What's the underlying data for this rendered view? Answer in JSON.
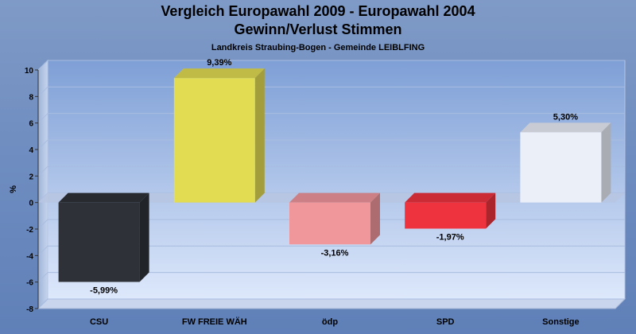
{
  "chart_data": {
    "type": "bar",
    "title": "Vergleich Europawahl 2009 - Europawahl 2004",
    "subtitle": "Gewinn/Verlust Stimmen",
    "subtitle2": "Landkreis Straubing-Bogen - Gemeinde LEIBLFING",
    "ylabel": "%",
    "ylim": [
      -8,
      10
    ],
    "yticks": [
      -8,
      -6,
      -4,
      -2,
      0,
      2,
      4,
      6,
      8,
      10
    ],
    "categories": [
      "CSU",
      "FW FREIE WÄH",
      "ödp",
      "SPD",
      "Sonstige"
    ],
    "values": [
      -5.99,
      9.39,
      -3.16,
      -1.97,
      5.3
    ],
    "value_labels": [
      "-5,99%",
      "9,39%",
      "-3,16%",
      "-1,97%",
      "5,30%"
    ],
    "colors": [
      "#2e3238",
      "#e2dc52",
      "#f0979c",
      "#ee333e",
      "#ebeff8"
    ],
    "grid": true,
    "legend": "none"
  }
}
